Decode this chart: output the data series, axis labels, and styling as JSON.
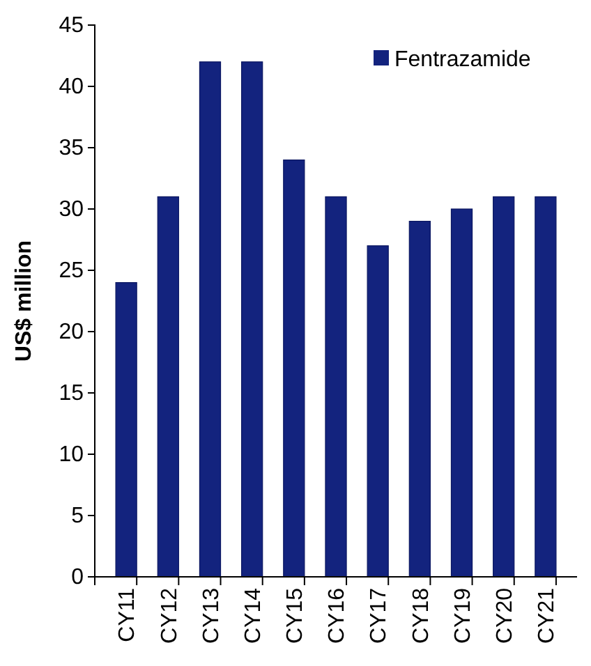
{
  "chart_data": {
    "type": "bar",
    "ylabel": "US$ million",
    "categories": [
      "CY11",
      "CY12",
      "CY13",
      "CY14",
      "CY15",
      "CY16",
      "CY17",
      "CY18",
      "CY19",
      "CY20",
      "CY21"
    ],
    "series": [
      {
        "name": "Fentrazamide",
        "color": "#13237e",
        "values": [
          24,
          31,
          42,
          42,
          34,
          31,
          27,
          29,
          30,
          31,
          31
        ]
      }
    ],
    "ylim": [
      0,
      45
    ],
    "yticks": [
      0,
      5,
      10,
      15,
      20,
      25,
      30,
      35,
      40,
      45
    ],
    "grid": false,
    "legend": "top right"
  }
}
